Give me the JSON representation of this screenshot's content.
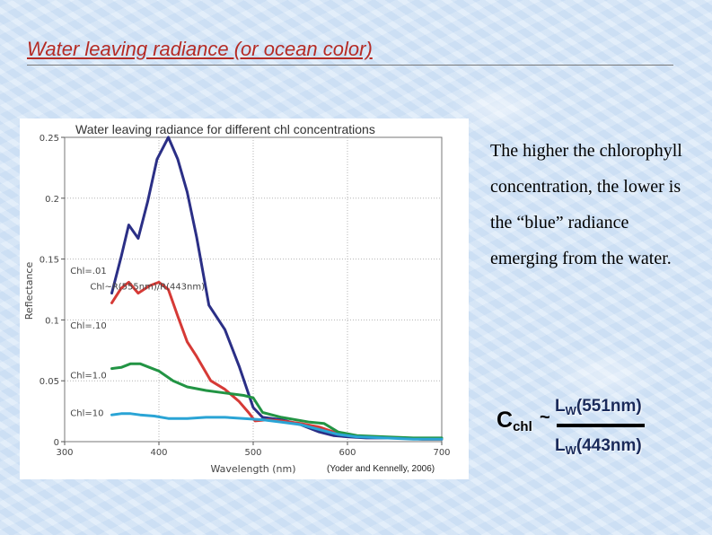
{
  "slide": {
    "title": "Water leaving radiance (or ocean color)",
    "body_text": "The higher the chlorophyll concentration, the lower is the “blue” radiance  emerging from the water."
  },
  "formula": {
    "lhs_symbol": "C",
    "lhs_subscript": "chl",
    "relation": "~",
    "numerator_symbol": "L",
    "numerator_subscript": "W",
    "numerator_arg": "(551nm)",
    "denominator_symbol": "L",
    "denominator_subscript": "W",
    "denominator_arg": "(443nm)"
  },
  "chart_data": {
    "type": "line",
    "title": "Water leaving radiance for different chl concentrations",
    "xlabel": "Wavelength (nm)",
    "ylabel": "Reflectance",
    "xlim": [
      300,
      700
    ],
    "ylim": [
      0,
      0.25
    ],
    "xticks": [
      300,
      400,
      500,
      600,
      700
    ],
    "yticks": [
      0,
      0.05,
      0.1,
      0.15,
      0.2,
      0.25
    ],
    "xtick_labels": [
      "300",
      "400",
      "500",
      "600",
      "700"
    ],
    "ytick_labels": [
      "0",
      "0.05",
      "0.1",
      "0.15",
      "0.2",
      "0.25"
    ],
    "grid": true,
    "annotations": [
      {
        "text": "Chl=.01",
        "x": 306,
        "y": 0.138
      },
      {
        "text": "Chl~R(555nm)/R(443nm)",
        "x": 327,
        "y": 0.125
      },
      {
        "text": "Chl=.10",
        "x": 306,
        "y": 0.093
      },
      {
        "text": "Chl=1.0",
        "x": 306,
        "y": 0.052
      },
      {
        "text": "Chl=10",
        "x": 306,
        "y": 0.021
      }
    ],
    "source": "(Yoder and  Kennelly, 2006)",
    "series": [
      {
        "color": "#2b2f86",
        "x": [
          350,
          360,
          368,
          378,
          388,
          398,
          410,
          420,
          430,
          440,
          453,
          470,
          485,
          500,
          510,
          530,
          550,
          570,
          585,
          600,
          620,
          650,
          680,
          700
        ],
        "y": [
          0.122,
          0.152,
          0.178,
          0.167,
          0.197,
          0.232,
          0.25,
          0.232,
          0.205,
          0.168,
          0.112,
          0.092,
          0.062,
          0.028,
          0.02,
          0.018,
          0.014,
          0.008,
          0.005,
          0.004,
          0.003,
          0.003,
          0.002,
          0.002
        ]
      },
      {
        "color": "#d63a36",
        "x": [
          350,
          360,
          368,
          378,
          390,
          400,
          410,
          420,
          430,
          440,
          455,
          470,
          485,
          495,
          502,
          515,
          530,
          550,
          570,
          585,
          600,
          620,
          650,
          680,
          700
        ],
        "y": [
          0.114,
          0.126,
          0.131,
          0.122,
          0.128,
          0.131,
          0.125,
          0.103,
          0.082,
          0.07,
          0.05,
          0.043,
          0.033,
          0.024,
          0.017,
          0.018,
          0.017,
          0.015,
          0.012,
          0.008,
          0.005,
          0.004,
          0.003,
          0.002,
          0.002
        ]
      },
      {
        "color": "#229444",
        "x": [
          350,
          360,
          370,
          380,
          390,
          400,
          415,
          430,
          450,
          470,
          490,
          500,
          510,
          530,
          560,
          575,
          590,
          610,
          640,
          670,
          700
        ],
        "y": [
          0.06,
          0.061,
          0.064,
          0.064,
          0.061,
          0.058,
          0.05,
          0.045,
          0.042,
          0.04,
          0.038,
          0.036,
          0.024,
          0.02,
          0.016,
          0.015,
          0.008,
          0.005,
          0.004,
          0.003,
          0.003
        ]
      },
      {
        "color": "#2aa4d5",
        "x": [
          350,
          360,
          370,
          380,
          395,
          410,
          430,
          450,
          470,
          490,
          510,
          530,
          550,
          570,
          590,
          610,
          640,
          670,
          700
        ],
        "y": [
          0.022,
          0.023,
          0.023,
          0.022,
          0.021,
          0.019,
          0.019,
          0.02,
          0.02,
          0.019,
          0.018,
          0.016,
          0.014,
          0.01,
          0.006,
          0.004,
          0.003,
          0.002,
          0.002
        ]
      }
    ]
  },
  "colors": {
    "title": "#b52b25",
    "background": "#d7e7f8",
    "figure_background": "#ffffff",
    "grid": "#b4b4b4"
  }
}
